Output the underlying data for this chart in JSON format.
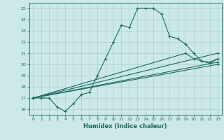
{
  "title": "",
  "xlabel": "Humidex (Indice chaleur)",
  "ylabel": "",
  "bg_color": "#cce8e8",
  "line_color": "#1a6b60",
  "grid_color": "#aacfcf",
  "xlim": [
    -0.5,
    23.5
  ],
  "ylim": [
    15.5,
    25.5
  ],
  "yticks": [
    16,
    17,
    18,
    19,
    20,
    21,
    22,
    23,
    24,
    25
  ],
  "xticks": [
    0,
    1,
    2,
    3,
    4,
    5,
    6,
    7,
    8,
    9,
    10,
    11,
    12,
    13,
    14,
    15,
    16,
    17,
    18,
    19,
    20,
    21,
    22,
    23
  ],
  "series1": [
    [
      0,
      17.0
    ],
    [
      1,
      17.0
    ],
    [
      2,
      17.0
    ],
    [
      3,
      16.2
    ],
    [
      4,
      15.8
    ],
    [
      5,
      16.5
    ],
    [
      6,
      17.3
    ],
    [
      7,
      17.5
    ],
    [
      8,
      19.0
    ],
    [
      9,
      20.5
    ],
    [
      10,
      22.0
    ],
    [
      11,
      23.5
    ],
    [
      12,
      23.3
    ],
    [
      13,
      25.0
    ],
    [
      14,
      25.0
    ],
    [
      15,
      25.0
    ],
    [
      16,
      24.5
    ],
    [
      17,
      22.5
    ],
    [
      18,
      22.3
    ],
    [
      19,
      21.8
    ],
    [
      20,
      21.0
    ],
    [
      21,
      20.3
    ],
    [
      22,
      20.1
    ],
    [
      23,
      20.5
    ]
  ],
  "series2": [
    [
      0,
      17.0
    ],
    [
      23,
      21.0
    ]
  ],
  "series3": [
    [
      0,
      17.0
    ],
    [
      19,
      21.0
    ],
    [
      20,
      20.5
    ],
    [
      21,
      20.3
    ],
    [
      22,
      20.2
    ],
    [
      23,
      20.5
    ]
  ],
  "series4": [
    [
      0,
      17.0
    ],
    [
      23,
      20.2
    ]
  ],
  "series5": [
    [
      0,
      17.0
    ],
    [
      23,
      20.0
    ]
  ]
}
